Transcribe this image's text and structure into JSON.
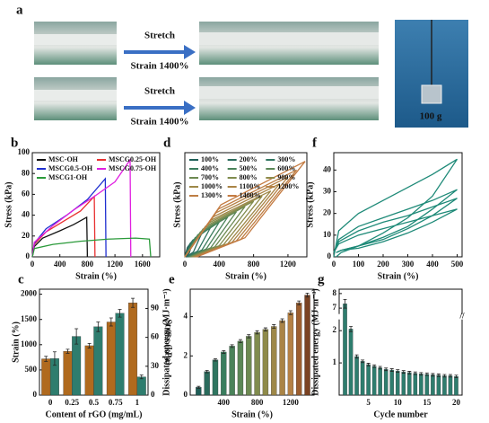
{
  "photos": {
    "label": "a",
    "rows": [
      {
        "action": "Stretch",
        "strain": "Strain 1400%"
      },
      {
        "action": "Stretch",
        "strain": "Strain 1400%"
      }
    ],
    "weight": "100 g"
  },
  "chart_data": [
    {
      "type": "line",
      "label": "b",
      "xlabel": "Strain (%)",
      "ylabel": "Stress (kPa)",
      "xlim": [
        0,
        1850
      ],
      "ylim": [
        0,
        100
      ],
      "xticks": [
        0,
        400,
        800,
        1200,
        1600
      ],
      "yticks": [
        0,
        20,
        40,
        60,
        80,
        100
      ],
      "legend": "upper left",
      "legend_columns": 2,
      "series": [
        {
          "name": "MSC-OH",
          "color": "#111111",
          "x": [
            0,
            30,
            150,
            400,
            600,
            790,
            800
          ],
          "values": [
            0,
            10,
            18,
            25,
            31,
            38,
            0
          ]
        },
        {
          "name": "MSCG0.25-OH",
          "color": "#e83030",
          "x": [
            0,
            30,
            200,
            500,
            700,
            900,
            910
          ],
          "values": [
            0,
            12,
            24,
            36,
            44,
            58,
            0
          ]
        },
        {
          "name": "MSCG0.5-OH",
          "color": "#1f2fd0",
          "x": [
            0,
            30,
            200,
            500,
            800,
            1060,
            1070
          ],
          "values": [
            0,
            13,
            27,
            40,
            55,
            75,
            0
          ]
        },
        {
          "name": "MSCG0.75-OH",
          "color": "#e020e0",
          "x": [
            0,
            30,
            300,
            600,
            900,
            1200,
            1420,
            1430
          ],
          "values": [
            0,
            14,
            30,
            45,
            58,
            72,
            93,
            0
          ]
        },
        {
          "name": "MSCG1-OH",
          "color": "#2a9a3a",
          "x": [
            0,
            30,
            300,
            700,
            1100,
            1500,
            1700,
            1720
          ],
          "values": [
            0,
            8,
            12,
            15,
            17,
            18,
            17,
            0
          ]
        }
      ]
    },
    {
      "type": "line",
      "label": "d",
      "xlabel": "Strain (%)",
      "ylabel": "Stress (kPa)",
      "xlim": [
        0,
        1420
      ],
      "ylim": [
        0,
        60
      ],
      "xticks": [
        0,
        400,
        800,
        1200
      ],
      "yticks": [],
      "legend": "upper left",
      "legend_columns": 3,
      "series": [
        {
          "name": "100%",
          "color": "#1e5e57",
          "x": [
            0,
            30,
            100,
            50,
            10
          ],
          "values": [
            0,
            5.5,
            10,
            2,
            0
          ]
        },
        {
          "name": "200%",
          "color": "#2a6b5c",
          "x": [
            0,
            60,
            200,
            100,
            20
          ],
          "values": [
            0,
            7.7,
            14,
            2.8,
            0
          ]
        },
        {
          "name": "300%",
          "color": "#2f7560",
          "x": [
            0,
            90,
            300,
            150,
            30
          ],
          "values": [
            0,
            9.4,
            17,
            3.4,
            0
          ]
        },
        {
          "name": "400%",
          "color": "#3a7d5e",
          "x": [
            0,
            120,
            400,
            200,
            40
          ],
          "values": [
            0,
            11,
            20,
            4,
            0
          ]
        },
        {
          "name": "500%",
          "color": "#4a835a",
          "x": [
            0,
            150,
            500,
            250,
            50
          ],
          "values": [
            0,
            12.7,
            23,
            4.6,
            0
          ]
        },
        {
          "name": "600%",
          "color": "#5b8757",
          "x": [
            0,
            180,
            600,
            300,
            60
          ],
          "values": [
            0,
            14.3,
            26,
            5.2,
            0
          ]
        },
        {
          "name": "700%",
          "color": "#6d8a52",
          "x": [
            0,
            210,
            700,
            350,
            70
          ],
          "values": [
            0,
            16,
            29,
            5.8,
            0
          ]
        },
        {
          "name": "800%",
          "color": "#808c4e",
          "x": [
            0,
            240,
            800,
            400,
            80
          ],
          "values": [
            0,
            17.6,
            32,
            6.4,
            0
          ]
        },
        {
          "name": "900%",
          "color": "#8f8b4a",
          "x": [
            0,
            270,
            900,
            450,
            90
          ],
          "values": [
            0,
            19.3,
            35,
            7,
            0
          ]
        },
        {
          "name": "1000%",
          "color": "#9e8848",
          "x": [
            0,
            300,
            1000,
            500,
            100
          ],
          "values": [
            0,
            21,
            38,
            7.6,
            0
          ]
        },
        {
          "name": "1100%",
          "color": "#aa8446",
          "x": [
            0,
            330,
            1100,
            550,
            110
          ],
          "values": [
            0,
            23,
            42,
            8.4,
            0
          ]
        },
        {
          "name": "1200%",
          "color": "#b58145",
          "x": [
            0,
            360,
            1200,
            600,
            120
          ],
          "values": [
            0,
            25.3,
            46,
            9.2,
            0
          ]
        },
        {
          "name": "1300%",
          "color": "#be7e44",
          "x": [
            0,
            390,
            1300,
            650,
            130
          ],
          "values": [
            0,
            27.5,
            50,
            10,
            0
          ]
        },
        {
          "name": "1400%",
          "color": "#c47b42",
          "x": [
            0,
            420,
            1400,
            700,
            140
          ],
          "values": [
            0,
            30,
            55,
            11,
            0
          ]
        }
      ]
    },
    {
      "type": "line",
      "label": "f",
      "xlabel": "Strain (%)",
      "ylabel": "Stress (kPa)",
      "xlim": [
        0,
        520
      ],
      "ylim": [
        0,
        48
      ],
      "xticks": [
        0,
        100,
        200,
        300,
        400,
        500
      ],
      "yticks": [
        0,
        10,
        20,
        30,
        40
      ],
      "x": [
        0,
        20,
        100,
        200,
        300,
        400,
        500,
        400,
        300,
        200,
        100,
        30,
        10
      ],
      "series": [
        {
          "color": "#1e8a78",
          "values": [
            0,
            12,
            20,
            26,
            32,
            38,
            45,
            28,
            18,
            11,
            5,
            2,
            0
          ]
        },
        {
          "color": "#1e8a78",
          "values": [
            2,
            8,
            14,
            18,
            22,
            26,
            31,
            22,
            14,
            9,
            5,
            3,
            2
          ]
        },
        {
          "color": "#1e8a78",
          "values": [
            2,
            7,
            12,
            16,
            19,
            23,
            27,
            19,
            13,
            8,
            5,
            3,
            2
          ]
        },
        {
          "color": "#1e8a78",
          "values": [
            2,
            6,
            10,
            13,
            16,
            19,
            22,
            16,
            11,
            7,
            4,
            3,
            2
          ]
        }
      ]
    },
    {
      "type": "bar",
      "label": "c",
      "xlabel": "Content of rGO (mg/mL)",
      "ylabel": "Strain (%)",
      "y2label": "Stress (kPa)",
      "categories": [
        "0",
        "0.25",
        "0.5",
        "0.75",
        "1"
      ],
      "ylim": [
        0,
        2100
      ],
      "yticks": [
        0,
        500,
        1000,
        1500,
        2000
      ],
      "y2lim": [
        0,
        110
      ],
      "y2ticks": [
        0,
        30,
        60,
        90
      ],
      "series": [
        {
          "color": "#b06a1e",
          "values": [
            720,
            870,
            980,
            1450,
            1830
          ],
          "errors": [
            50,
            40,
            45,
            80,
            90
          ]
        },
        {
          "color": "#2e7d6e",
          "axis": "y2",
          "values": [
            38,
            61,
            71,
            85,
            19
          ],
          "errors": [
            7,
            8,
            5,
            4,
            2
          ]
        }
      ]
    },
    {
      "type": "bar",
      "label": "e",
      "xlabel": "Strain (%)",
      "ylabel": "Dissipated energy (MJ·m⁻³)",
      "xlim": [
        0,
        1480
      ],
      "ylim": [
        0,
        5.4
      ],
      "xticks": [
        400,
        800,
        1200
      ],
      "yticks": [
        0,
        2,
        4
      ],
      "x": [
        100,
        200,
        300,
        400,
        500,
        600,
        700,
        800,
        900,
        1000,
        1100,
        1200,
        1300,
        1400
      ],
      "series": [
        {
          "values": [
            0.4,
            1.2,
            1.8,
            2.2,
            2.5,
            2.75,
            3.0,
            3.2,
            3.35,
            3.5,
            3.8,
            4.2,
            4.7,
            5.1
          ],
          "errors": [
            0.05,
            0.06,
            0.06,
            0.07,
            0.07,
            0.08,
            0.08,
            0.08,
            0.08,
            0.09,
            0.09,
            0.1,
            0.1,
            0.1
          ],
          "colors": [
            "#1e5e57",
            "#2a6b5c",
            "#2f7560",
            "#3a7d5e",
            "#4a835a",
            "#5b8757",
            "#6d8a52",
            "#808c4e",
            "#8f8b4a",
            "#9e8848",
            "#aa8446",
            "#b58145",
            "#9c5e2e",
            "#7a4222"
          ]
        }
      ]
    },
    {
      "type": "bar",
      "label": "g",
      "xlabel": "Cycle number",
      "ylabel": "Dissipated energy (MJ·m⁻³)",
      "xlim": [
        0,
        21
      ],
      "ylim": [
        0,
        8.3
      ],
      "y_break": [
        2.3,
        6.7
      ],
      "xticks": [
        5,
        10,
        15,
        20
      ],
      "yticks": [
        1,
        2,
        7,
        8
      ],
      "x": [
        1,
        2,
        3,
        4,
        5,
        6,
        7,
        8,
        9,
        10,
        11,
        12,
        13,
        14,
        15,
        16,
        17,
        18,
        19,
        20
      ],
      "series": [
        {
          "color": "#2e7d6e",
          "values": [
            7.3,
            2.05,
            1.2,
            1.05,
            0.95,
            0.9,
            0.85,
            0.8,
            0.78,
            0.75,
            0.72,
            0.7,
            0.68,
            0.66,
            0.65,
            0.63,
            0.62,
            0.6,
            0.6,
            0.58
          ],
          "errors": [
            0.3,
            0.08,
            0.05,
            0.04,
            0.04,
            0.04,
            0.04,
            0.04,
            0.04,
            0.04,
            0.04,
            0.04,
            0.04,
            0.04,
            0.04,
            0.04,
            0.04,
            0.04,
            0.04,
            0.04
          ]
        }
      ]
    }
  ]
}
